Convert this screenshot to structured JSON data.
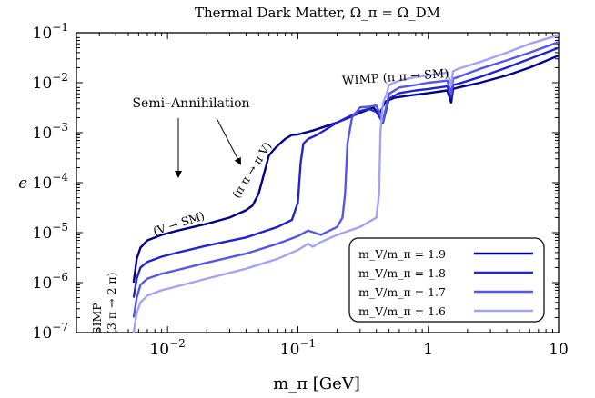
{
  "chart_data": {
    "type": "line",
    "title": "Thermal Dark Matter, Ω_π = Ω_DM",
    "xlabel": "m_π [GeV]",
    "ylabel": "ϵ",
    "xscale": "log",
    "yscale": "log",
    "xlim": [
      0.002,
      10
    ],
    "ylim": [
      1e-07,
      0.1
    ],
    "x_ticks": [
      {
        "value": 0.01,
        "base": "10",
        "exp": "−2"
      },
      {
        "value": 0.1,
        "base": "10",
        "exp": "−1"
      },
      {
        "value": 1,
        "base": "1",
        "exp": ""
      },
      {
        "value": 10,
        "base": "10",
        "exp": ""
      }
    ],
    "y_ticks": [
      {
        "value": 1e-07,
        "base": "10",
        "exp": "−7"
      },
      {
        "value": 1e-06,
        "base": "10",
        "exp": "−6"
      },
      {
        "value": 1e-05,
        "base": "10",
        "exp": "−5"
      },
      {
        "value": 0.0001,
        "base": "10",
        "exp": "−4"
      },
      {
        "value": 0.001,
        "base": "10",
        "exp": "−3"
      },
      {
        "value": 0.01,
        "base": "10",
        "exp": "−2"
      },
      {
        "value": 0.1,
        "base": "10",
        "exp": "−1"
      }
    ],
    "legend_position": "bottom-right",
    "series": [
      {
        "name": "m_V/m_π = 1.9",
        "color": "#00008b",
        "x": [
          0.0055,
          0.0058,
          0.0062,
          0.007,
          0.009,
          0.012,
          0.02,
          0.03,
          0.04,
          0.045,
          0.05,
          0.055,
          0.06,
          0.065,
          0.07,
          0.08,
          0.09,
          0.1,
          0.13,
          0.2,
          0.3,
          0.38,
          0.42,
          0.47,
          0.55,
          0.7,
          1.0,
          1.4,
          1.5,
          1.55,
          1.7,
          2.5,
          4,
          6,
          10
        ],
        "y": [
          1e-06,
          3e-06,
          5e-06,
          7e-06,
          9e-06,
          1.1e-05,
          1.5e-05,
          2e-05,
          2.8e-05,
          3.5e-05,
          6e-05,
          0.00015,
          0.00035,
          0.00045,
          0.00055,
          0.00075,
          0.0009,
          0.00092,
          0.0011,
          0.0016,
          0.0025,
          0.0032,
          0.0023,
          0.0042,
          0.005,
          0.0055,
          0.0062,
          0.007,
          0.004,
          0.0075,
          0.008,
          0.01,
          0.014,
          0.02,
          0.035
        ]
      },
      {
        "name": "m_V/m_π = 1.8",
        "color": "#2323cd",
        "x": [
          0.0055,
          0.0058,
          0.0062,
          0.007,
          0.009,
          0.012,
          0.02,
          0.04,
          0.07,
          0.09,
          0.1,
          0.105,
          0.11,
          0.12,
          0.14,
          0.2,
          0.3,
          0.35,
          0.4,
          0.45,
          0.5,
          0.6,
          0.8,
          1.0,
          1.4,
          1.5,
          1.55,
          1.7,
          2.5,
          4,
          6,
          10
        ],
        "y": [
          5e-07,
          1.2e-06,
          2e-06,
          2.6e-06,
          3.3e-06,
          4e-06,
          5.5e-06,
          8e-06,
          1.3e-05,
          1.8e-05,
          4e-05,
          0.00025,
          0.0006,
          0.00075,
          0.0009,
          0.0016,
          0.0027,
          0.003,
          0.0026,
          0.0016,
          0.0048,
          0.0062,
          0.007,
          0.0075,
          0.0085,
          0.005,
          0.009,
          0.0095,
          0.013,
          0.02,
          0.03,
          0.05
        ]
      },
      {
        "name": "m_V/m_π = 1.7",
        "color": "#5656e5",
        "x": [
          0.0055,
          0.0058,
          0.0062,
          0.007,
          0.009,
          0.012,
          0.02,
          0.04,
          0.07,
          0.1,
          0.12,
          0.15,
          0.2,
          0.22,
          0.23,
          0.24,
          0.26,
          0.3,
          0.35,
          0.4,
          0.45,
          0.5,
          0.6,
          0.8,
          1.0,
          1.4,
          1.5,
          1.55,
          1.7,
          2.5,
          4,
          6,
          10
        ],
        "y": [
          2e-07,
          5e-07,
          9e-07,
          1.2e-06,
          1.5e-06,
          1.8e-06,
          2.5e-06,
          3.8e-06,
          6e-06,
          8.5e-06,
          1.1e-05,
          9e-06,
          1.3e-05,
          2e-05,
          6e-05,
          0.0006,
          0.002,
          0.0032,
          0.0033,
          0.0035,
          0.0017,
          0.006,
          0.008,
          0.009,
          0.01,
          0.011,
          0.006,
          0.012,
          0.013,
          0.019,
          0.028,
          0.04,
          0.065
        ]
      },
      {
        "name": "m_V/m_π = 1.6",
        "color": "#a3a3f0",
        "x": [
          0.0055,
          0.0058,
          0.0062,
          0.007,
          0.009,
          0.012,
          0.02,
          0.04,
          0.07,
          0.1,
          0.12,
          0.13,
          0.15,
          0.2,
          0.3,
          0.4,
          0.42,
          0.43,
          0.45,
          0.48,
          0.5,
          0.6,
          0.8,
          1.0,
          1.4,
          1.5,
          1.55,
          1.7,
          2.5,
          4,
          6,
          10
        ],
        "y": [
          1e-07,
          2.5e-07,
          4e-07,
          5.5e-07,
          7e-07,
          8.5e-07,
          1.2e-06,
          1.9e-06,
          3e-06,
          4.5e-06,
          6e-06,
          5.2e-06,
          6.5e-06,
          9e-06,
          1.3e-05,
          2e-05,
          6e-05,
          0.001,
          0.004,
          0.006,
          0.009,
          0.011,
          0.013,
          0.014,
          0.016,
          0.009,
          0.017,
          0.019,
          0.026,
          0.04,
          0.06,
          0.09
        ]
      }
    ],
    "annotations": [
      {
        "id": "simp",
        "lines": [
          "SIMP",
          "(3 π → 2 π)"
        ]
      },
      {
        "id": "v-sm",
        "text": "(V → SM)"
      },
      {
        "id": "pipi-piv",
        "text": "(π π → π V)"
      },
      {
        "id": "semi",
        "text": "Semi–Annihilation"
      },
      {
        "id": "wimp",
        "text": "WIMP (π π → SM)"
      }
    ]
  }
}
